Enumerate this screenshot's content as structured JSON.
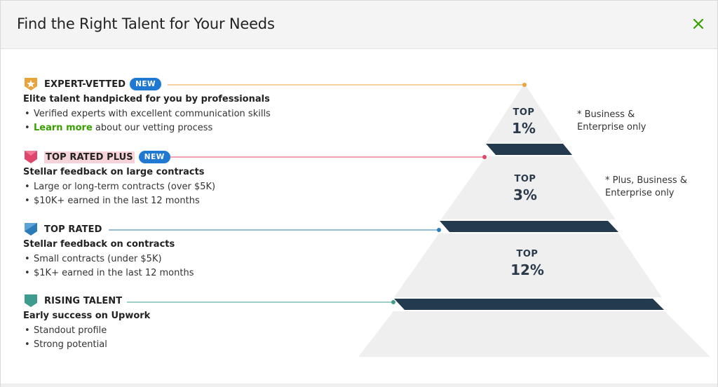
{
  "modal": {
    "title": "Find the Right Talent for Your Needs",
    "close_icon": "close-icon",
    "accent_color": "#37a000"
  },
  "tiers": [
    {
      "name": "EXPERT-VETTED",
      "new_label": "NEW",
      "subtitle": "Elite talent handpicked for you by professionals",
      "bullets": [
        "Verified experts with excellent communication skills"
      ],
      "link_text": "Learn more",
      "link_rest": " about our vetting process",
      "icon": "expert-vetted-star-badge-icon",
      "color": "#e8a33a"
    },
    {
      "name": "TOP RATED PLUS",
      "new_label": "NEW",
      "subtitle": "Stellar feedback on large contracts",
      "bullets": [
        "Large or long-term contracts (over $5K)",
        "$10K+ earned in the last 12 months"
      ],
      "icon": "top-rated-plus-badge-icon",
      "color": "#e0466b"
    },
    {
      "name": "TOP RATED",
      "subtitle": "Stellar feedback on contracts",
      "bullets": [
        "Small contracts (under $5K)",
        "$1K+ earned in the last 12 months"
      ],
      "icon": "top-rated-badge-icon",
      "color": "#2a7bb8"
    },
    {
      "name": "RISING TALENT",
      "subtitle": "Early success on Upwork",
      "bullets": [
        "Standout profile",
        "Strong potential"
      ],
      "icon": "rising-talent-badge-icon",
      "color": "#3d9c8d"
    }
  ],
  "pyramid": {
    "levels": [
      {
        "top": "TOP",
        "pct": "1%"
      },
      {
        "top": "TOP",
        "pct": "3%"
      },
      {
        "top": "TOP",
        "pct": "12%"
      }
    ],
    "notes": [
      [
        "* Business &",
        "Enterprise only"
      ],
      [
        "* Plus, Business &",
        "Enterprise only"
      ]
    ],
    "fill_color": "#efefef",
    "band_color": "#243b4f"
  }
}
